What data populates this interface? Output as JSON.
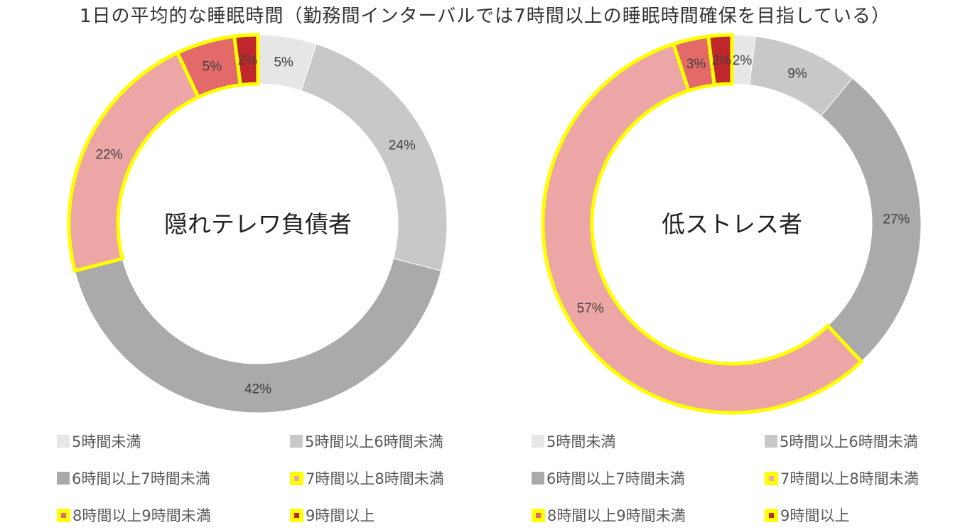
{
  "title": "1日の平均的な睡眠時間（勤務間インターバルでは7時間以上の睡眠時間確保を目指している）",
  "highlight_color": "#FFFF00",
  "chart_data": [
    {
      "type": "pie",
      "title": "隠れテレワ負債者",
      "categories": [
        "5時間未満",
        "5時間以上6時間未満",
        "6時間以上7時間未満",
        "7時間以上8時間未満",
        "8時間以上9時間未満",
        "9時間以上"
      ],
      "values": [
        5,
        24,
        42,
        22,
        5,
        2
      ],
      "labels": [
        "5%",
        "24%",
        "42%",
        "22%",
        "5%",
        "2%"
      ],
      "colors": [
        "#E6E6E6",
        "#C8C8C8",
        "#AAAAAA",
        "#EDA6A6",
        "#E46A6A",
        "#C0272D"
      ],
      "highlighted": [
        false,
        false,
        false,
        true,
        true,
        true
      ],
      "legend_position": "bottom"
    },
    {
      "type": "pie",
      "title": "低ストレス者",
      "categories": [
        "5時間未満",
        "5時間以上6時間未満",
        "6時間以上7時間未満",
        "7時間以上8時間未満",
        "8時間以上9時間未満",
        "9時間以上"
      ],
      "values": [
        2,
        9,
        27,
        57,
        3,
        2
      ],
      "labels": [
        "2%",
        "9%",
        "27%",
        "57%",
        "3%",
        "2%"
      ],
      "colors": [
        "#E6E6E6",
        "#C8C8C8",
        "#AAAAAA",
        "#EDA6A6",
        "#E46A6A",
        "#C0272D"
      ],
      "highlighted": [
        false,
        false,
        false,
        true,
        true,
        true
      ],
      "legend_position": "bottom"
    }
  ]
}
